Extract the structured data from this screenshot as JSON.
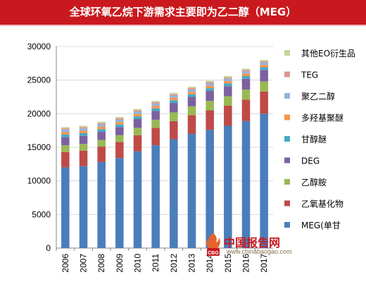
{
  "title": "全球环氧乙烷下游需求主要即为乙二醇（MEG）",
  "watermark": {
    "logo_text": "CBG",
    "site_name": "中国报告网",
    "url": "www.chinabaogao.com"
  },
  "chart_data": {
    "type": "bar",
    "stacked": true,
    "categories": [
      "2006",
      "2007",
      "2008",
      "2009",
      "2010",
      "2011",
      "2012",
      "2013",
      "2014",
      "2015",
      "2016",
      "2017"
    ],
    "ylim": [
      0,
      30000
    ],
    "yticks": [
      "0",
      "5000",
      "10000",
      "15000",
      "20000",
      "25000",
      "30000"
    ],
    "grid": true,
    "legend_position": "right",
    "series": [
      {
        "name": "MEG(单甘",
        "color": "#4a7ebb",
        "values": [
          12000,
          12200,
          12800,
          13400,
          14400,
          15300,
          16200,
          17000,
          17600,
          18200,
          18900,
          20000
        ]
      },
      {
        "name": "乙氧基化物",
        "color": "#be4b48",
        "values": [
          2300,
          2300,
          2300,
          2400,
          2400,
          2600,
          2700,
          2800,
          2900,
          3000,
          3200,
          3300
        ]
      },
      {
        "name": "乙醇胺",
        "color": "#98b954",
        "values": [
          1000,
          1000,
          1000,
          1000,
          1100,
          1200,
          1300,
          1300,
          1400,
          1400,
          1500,
          1500
        ]
      },
      {
        "name": "DEG",
        "color": "#7d60a0",
        "values": [
          1200,
          1200,
          1200,
          1200,
          1300,
          1300,
          1400,
          1400,
          1500,
          1500,
          1600,
          1700
        ]
      },
      {
        "name": "甘醇醚",
        "color": "#46aac5",
        "values": [
          400,
          400,
          400,
          400,
          400,
          400,
          400,
          400,
          400,
          400,
          400,
          400
        ]
      },
      {
        "name": "多羟基聚醚",
        "color": "#f79646",
        "values": [
          350,
          350,
          350,
          350,
          350,
          350,
          350,
          350,
          350,
          350,
          350,
          350
        ]
      },
      {
        "name": "聚乙二醇",
        "color": "#95b3d7",
        "values": [
          350,
          350,
          350,
          350,
          350,
          350,
          350,
          350,
          350,
          350,
          350,
          350
        ]
      },
      {
        "name": "TEG",
        "color": "#d99694",
        "values": [
          200,
          200,
          200,
          200,
          200,
          200,
          200,
          200,
          200,
          200,
          200,
          200
        ]
      },
      {
        "name": "其他EO衍生品",
        "color": "#c3d69b",
        "values": [
          200,
          200,
          200,
          200,
          200,
          200,
          200,
          200,
          200,
          200,
          200,
          200
        ]
      }
    ]
  }
}
